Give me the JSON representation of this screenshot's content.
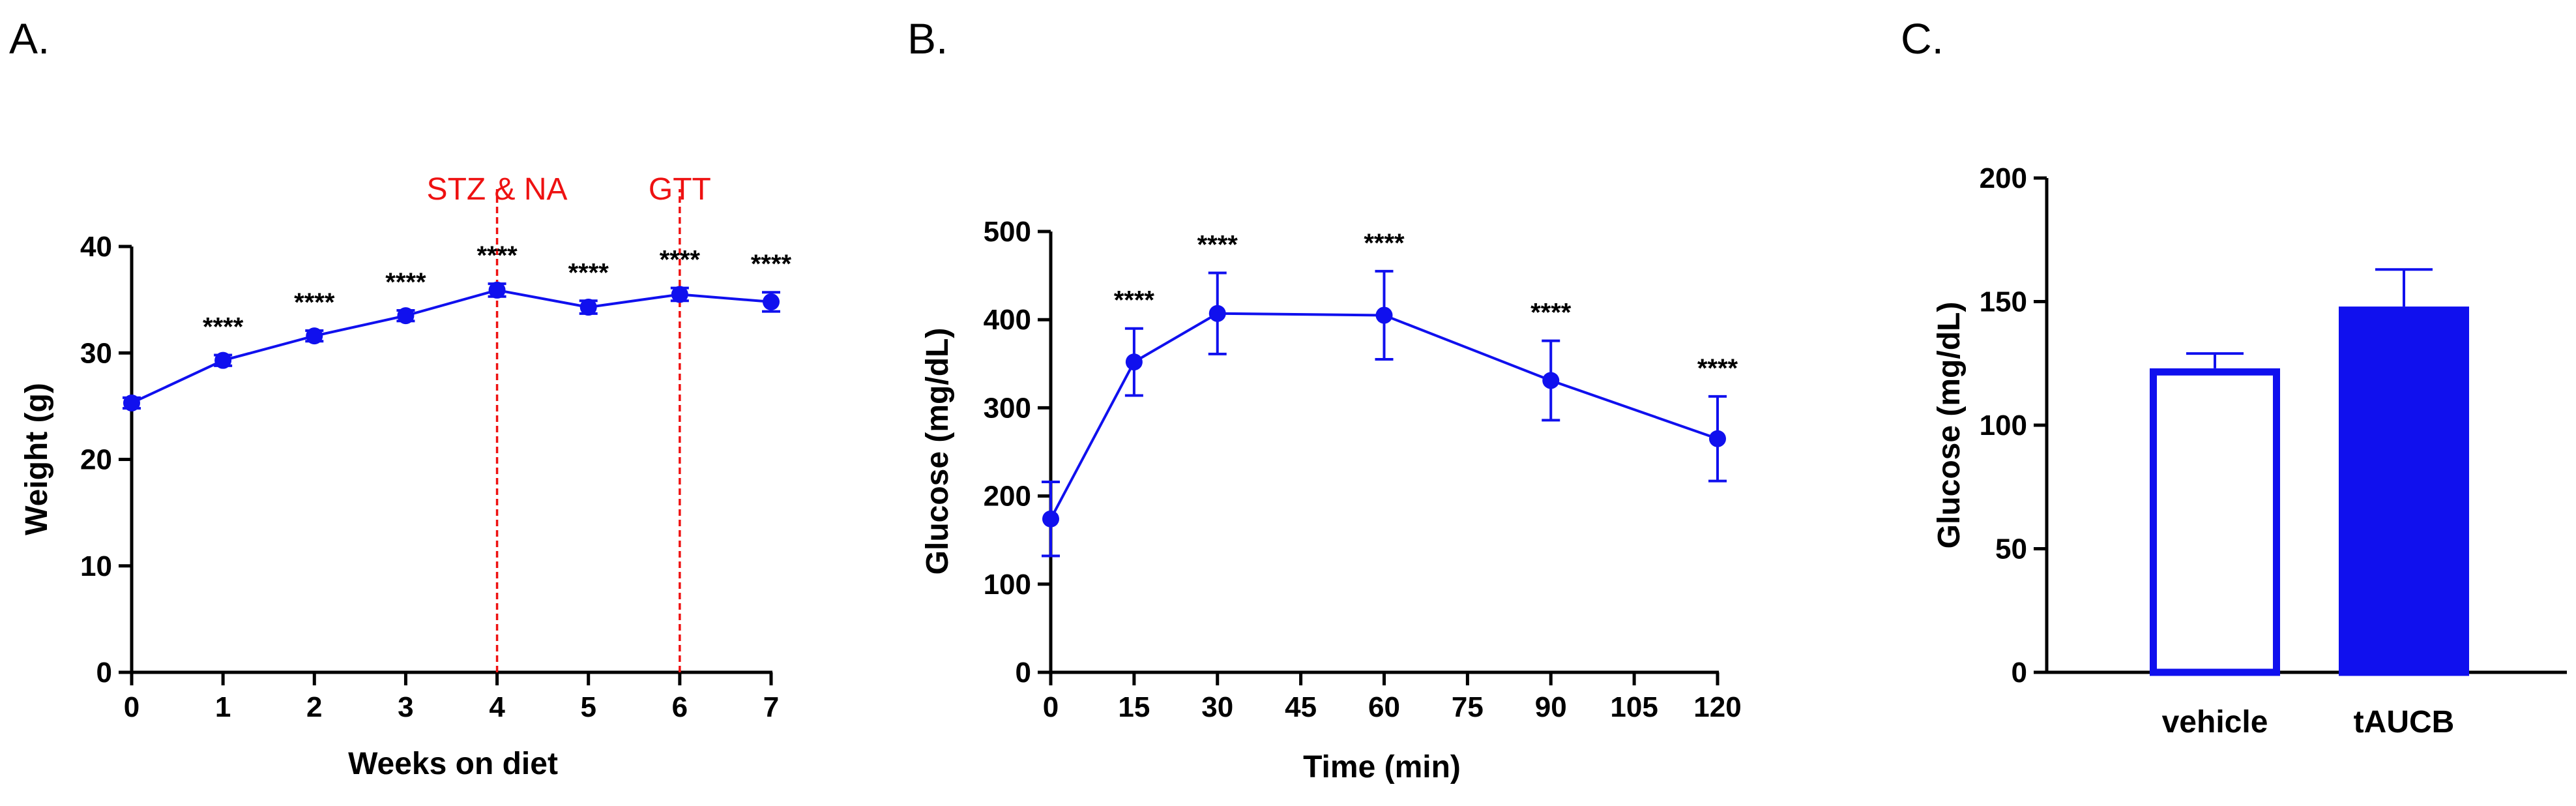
{
  "colors": {
    "series": "#1010ee",
    "event": "#ee1111",
    "axis": "#000000"
  },
  "chart_data": [
    {
      "panel": "A.",
      "type": "line",
      "xlabel": "Weeks on diet",
      "ylabel": "Weight (g)",
      "xlim": [
        0,
        7
      ],
      "ylim": [
        0,
        40
      ],
      "xticks": [
        0,
        1,
        2,
        3,
        4,
        5,
        6,
        7
      ],
      "yticks": [
        0,
        10,
        20,
        30,
        40
      ],
      "grid": false,
      "series": [
        {
          "name": "Weight",
          "x": [
            0,
            1,
            2,
            3,
            4,
            5,
            6,
            7
          ],
          "y": [
            25.3,
            29.3,
            31.6,
            33.5,
            35.9,
            34.3,
            35.5,
            34.8
          ],
          "err": [
            0.5,
            0.5,
            0.5,
            0.5,
            0.6,
            0.6,
            0.6,
            0.9
          ],
          "significance": [
            "",
            "****",
            "****",
            "****",
            "****",
            "****",
            "****",
            "****"
          ]
        }
      ],
      "annotations": [
        {
          "x": 4,
          "label": "STZ & NA"
        },
        {
          "x": 6,
          "label": "GTT"
        }
      ]
    },
    {
      "panel": "B.",
      "type": "line",
      "xlabel": "Time (min)",
      "ylabel": "Glucose (mg/dL)",
      "xlim": [
        0,
        120
      ],
      "ylim": [
        0,
        500
      ],
      "xticks": [
        0,
        15,
        30,
        45,
        60,
        75,
        90,
        105,
        120
      ],
      "yticks": [
        0,
        100,
        200,
        300,
        400,
        500
      ],
      "grid": false,
      "series": [
        {
          "name": "Glucose",
          "x": [
            0,
            15,
            30,
            60,
            90,
            120
          ],
          "y": [
            174,
            352,
            407,
            405,
            331,
            265
          ],
          "err": [
            42,
            38,
            46,
            50,
            45,
            48
          ],
          "significance": [
            "",
            "****",
            "****",
            "****",
            "****",
            "****"
          ]
        }
      ]
    },
    {
      "panel": "C.",
      "type": "bar",
      "xlabel": "",
      "ylabel": "Glucose (mg/dL)",
      "ylim": [
        0,
        200
      ],
      "yticks": [
        0,
        50,
        100,
        150,
        200
      ],
      "grid": false,
      "categories": [
        "vehicle",
        "tAUCB"
      ],
      "values": [
        123,
        148
      ],
      "err": [
        6,
        15
      ],
      "fill": [
        "open",
        "filled"
      ]
    }
  ]
}
